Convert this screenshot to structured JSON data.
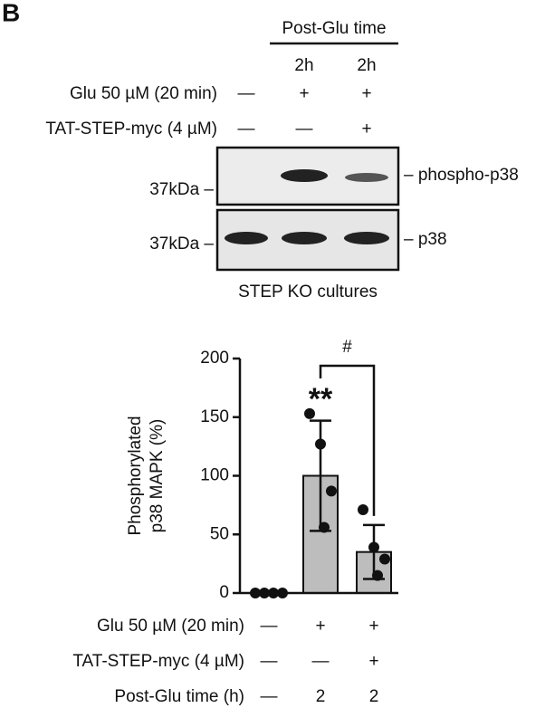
{
  "panel": "B",
  "blot": {
    "header": "Post-Glu time",
    "times": [
      "2h",
      "2h"
    ],
    "rows": [
      {
        "label": "Glu 50 µM (20 min)",
        "values": [
          "—",
          "+",
          "+"
        ]
      },
      {
        "label": "TAT-STEP-myc (4 µM)",
        "values": [
          "—",
          "—",
          "+"
        ]
      }
    ],
    "markers": [
      "37kDa –",
      "37kDa –"
    ],
    "bands": [
      "– phospho-p38",
      "– p38"
    ],
    "caption": "STEP KO cultures"
  },
  "chart_data": {
    "type": "bar",
    "ylabel": [
      "Phosphorylated",
      "p38 MAPK (%)"
    ],
    "values": [
      0,
      100,
      35
    ],
    "errors": [
      0,
      47,
      23
    ],
    "points": [
      [
        0,
        0,
        0,
        0
      ],
      [
        153,
        127,
        87,
        56
      ],
      [
        71,
        39,
        29,
        15
      ]
    ],
    "color": "#bdbdbd",
    "ylim": [
      0,
      200
    ],
    "yticks": [
      0,
      50,
      100,
      150,
      200
    ],
    "annotations": [
      "**",
      "#"
    ],
    "conditions": [
      {
        "label": "Glu 50 µM (20 min)",
        "values": [
          "—",
          "+",
          "+"
        ]
      },
      {
        "label": "TAT-STEP-myc (4 µM)",
        "values": [
          "—",
          "—",
          "+"
        ]
      },
      {
        "label": "Post-Glu time (h)",
        "values": [
          "—",
          "2",
          "2"
        ]
      }
    ]
  }
}
